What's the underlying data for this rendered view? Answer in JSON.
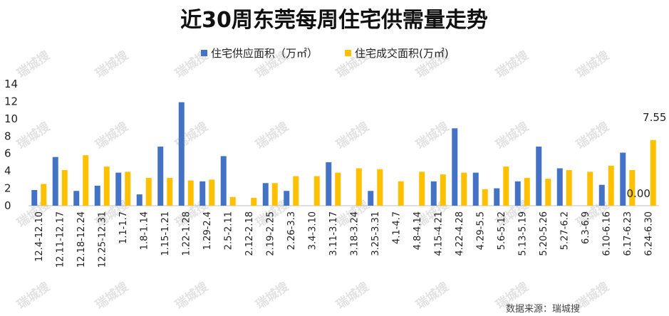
{
  "chart_data": {
    "type": "bar",
    "title": "近30周东莞每周住宅供需量走势",
    "categories": [
      "12.4-12.10",
      "12.11-12.17",
      "12.18-12.24",
      "12.25-12.31",
      "1.1-1.7",
      "1.8-1.14",
      "1.15-1.21",
      "1.22-1.28",
      "1.29-2.4",
      "2.5-2.11",
      "2.12-2.18",
      "2.19-2.25",
      "2.26-3.3",
      "3.4-3.10",
      "3.11-3.17",
      "3.18-3.24",
      "3.25-3.31",
      "4.1-4.7",
      "4.8-4.14",
      "4.15-4.21",
      "4.22-4.28",
      "4.29-5.5",
      "5.6-5.12",
      "5.13-5.19",
      "5.20-5.26",
      "5.27-6.2",
      "6.3-6.9",
      "6.10-6.16",
      "6.17-6.23",
      "6.24-6.30"
    ],
    "series": [
      {
        "name": "住宅供应面积（万㎡）",
        "color": "#4472C4",
        "values": [
          1.8,
          5.6,
          1.7,
          2.3,
          3.8,
          1.3,
          6.8,
          11.9,
          2.8,
          5.7,
          0,
          2.6,
          1.7,
          0,
          5.0,
          0,
          1.7,
          0,
          0,
          2.8,
          8.9,
          3.8,
          2.0,
          2.8,
          6.8,
          4.3,
          0,
          2.4,
          6.1,
          0
        ]
      },
      {
        "name": "住宅成交面积(万㎡)",
        "color": "#FFC000",
        "values": [
          2.5,
          4.1,
          5.8,
          4.5,
          3.9,
          3.2,
          3.2,
          2.9,
          3.0,
          1.0,
          0.9,
          2.6,
          3.4,
          3.4,
          3.8,
          4.3,
          4.2,
          2.8,
          3.9,
          3.6,
          3.8,
          1.9,
          4.5,
          3.2,
          3.1,
          4.1,
          3.9,
          4.6,
          4.1,
          7.55
        ]
      }
    ],
    "ylim": [
      0,
      14
    ],
    "yticks": [
      0,
      2,
      4,
      6,
      8,
      10,
      12,
      14
    ],
    "legend": "top",
    "grid": false,
    "annotations": [
      {
        "text": "7.55",
        "series": 1,
        "index": 29
      },
      {
        "text": "0.00",
        "series": 0,
        "index": 29
      }
    ]
  },
  "watermark": "瑞城搜",
  "source": "数据来源：瑞城搜"
}
